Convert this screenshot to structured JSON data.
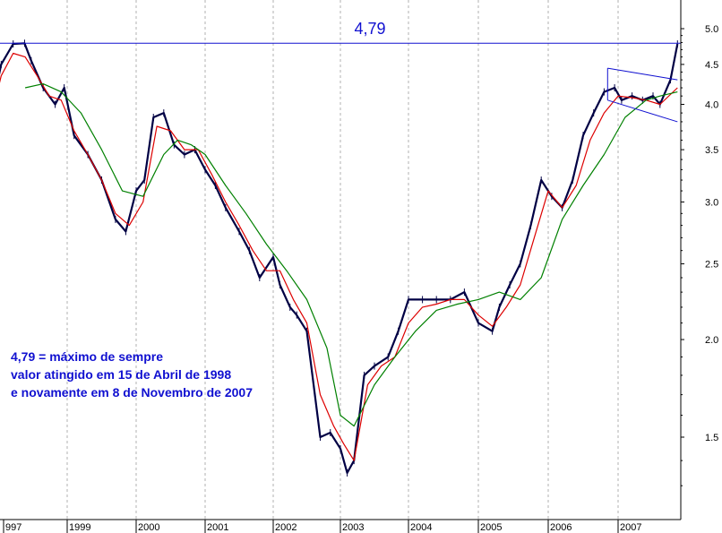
{
  "chart_data": {
    "type": "line",
    "title": "",
    "xlabel": "",
    "ylabel": "",
    "y_scale": "log",
    "ylim": [
      1.2,
      5.2
    ],
    "x_tick_labels": [
      "997",
      "1999",
      "2000",
      "2001",
      "2002",
      "2003",
      "2004",
      "2005",
      "2006",
      "2007"
    ],
    "y_ticks": [
      5.0,
      4.5,
      4.0,
      3.5,
      3.0,
      2.5,
      2.0,
      1.5
    ],
    "y_tick_labels": [
      "5.0",
      "4.5",
      "4.0",
      "3.5",
      "3.0",
      "2.5",
      "2.0",
      "1.5"
    ],
    "grid": "vertical dotted at year boundaries",
    "series": [
      {
        "style": "price (black/navy bars)",
        "color": "#000044",
        "x": [
          1997.5,
          1997.7,
          1997.9,
          1998.1,
          1998.29,
          1998.4,
          1998.6,
          1998.8,
          1998.95,
          1999.1,
          1999.3,
          1999.5,
          1999.7,
          1999.85,
          2000.0,
          2000.12,
          2000.25,
          2000.4,
          2000.55,
          2000.7,
          2000.85,
          2001.0,
          2001.15,
          2001.3,
          2001.5,
          2001.65,
          2001.8,
          2002.0,
          2002.1,
          2002.25,
          2002.35,
          2002.5,
          2002.7,
          2002.85,
          2003.0,
          2003.1,
          2003.2,
          2003.35,
          2003.5,
          2003.7,
          2003.85,
          2004.0,
          2004.2,
          2004.4,
          2004.6,
          2004.8,
          2005.0,
          2005.2,
          2005.3,
          2005.45,
          2005.6,
          2005.75,
          2005.9,
          2006.05,
          2006.2,
          2006.35,
          2006.5,
          2006.65,
          2006.8,
          2006.95,
          2007.05,
          2007.2,
          2007.35,
          2007.5,
          2007.6,
          2007.75,
          2007.85
        ],
        "values": [
          3.35,
          3.8,
          4.5,
          4.78,
          4.79,
          4.55,
          4.2,
          4.0,
          4.2,
          3.65,
          3.45,
          3.2,
          2.85,
          2.75,
          3.1,
          3.2,
          3.85,
          3.9,
          3.55,
          3.45,
          3.5,
          3.3,
          3.15,
          2.95,
          2.75,
          2.6,
          2.4,
          2.55,
          2.35,
          2.2,
          2.15,
          2.05,
          1.5,
          1.52,
          1.45,
          1.35,
          1.4,
          1.8,
          1.85,
          1.9,
          2.05,
          2.25,
          2.25,
          2.25,
          2.25,
          2.3,
          2.1,
          2.05,
          2.2,
          2.35,
          2.5,
          2.8,
          3.2,
          3.05,
          2.95,
          3.2,
          3.65,
          3.9,
          4.15,
          4.2,
          4.05,
          4.1,
          4.05,
          4.1,
          4.0,
          4.3,
          4.78
        ]
      },
      {
        "style": "short moving average",
        "color": "#dd0000",
        "x": [
          1997.5,
          1997.7,
          1997.9,
          1998.1,
          1998.3,
          1998.5,
          1998.7,
          1998.9,
          1999.1,
          1999.3,
          1999.5,
          1999.7,
          1999.9,
          2000.1,
          2000.3,
          2000.5,
          2000.7,
          2000.9,
          2001.1,
          2001.3,
          2001.5,
          2001.7,
          2001.9,
          2002.1,
          2002.3,
          2002.5,
          2002.7,
          2002.9,
          2003.05,
          2003.2,
          2003.4,
          2003.6,
          2003.8,
          2004.0,
          2004.2,
          2004.4,
          2004.6,
          2004.8,
          2005.0,
          2005.2,
          2005.4,
          2005.6,
          2005.8,
          2006.0,
          2006.2,
          2006.4,
          2006.6,
          2006.8,
          2007.0,
          2007.2,
          2007.4,
          2007.6,
          2007.85
        ],
        "values": [
          3.4,
          3.75,
          4.35,
          4.65,
          4.6,
          4.35,
          4.1,
          4.05,
          3.7,
          3.45,
          3.2,
          2.9,
          2.8,
          3.0,
          3.75,
          3.7,
          3.5,
          3.5,
          3.25,
          3.0,
          2.8,
          2.6,
          2.45,
          2.45,
          2.25,
          2.1,
          1.7,
          1.55,
          1.47,
          1.4,
          1.75,
          1.85,
          1.9,
          2.1,
          2.2,
          2.22,
          2.25,
          2.25,
          2.15,
          2.08,
          2.2,
          2.35,
          2.7,
          3.1,
          2.95,
          3.15,
          3.6,
          3.9,
          4.1,
          4.08,
          4.05,
          4.0,
          4.2
        ]
      },
      {
        "style": "long moving average",
        "color": "#008000",
        "x": [
          1998.3,
          1998.6,
          1998.9,
          1999.2,
          1999.5,
          1999.8,
          2000.1,
          2000.4,
          2000.6,
          2000.8,
          2001.0,
          2001.3,
          2001.6,
          2001.9,
          2002.2,
          2002.5,
          2002.8,
          2003.0,
          2003.2,
          2003.5,
          2003.8,
          2004.1,
          2004.4,
          2004.7,
          2005.0,
          2005.3,
          2005.6,
          2005.9,
          2006.2,
          2006.5,
          2006.8,
          2007.1,
          2007.4,
          2007.6,
          2007.85
        ],
        "values": [
          4.2,
          4.25,
          4.15,
          3.9,
          3.5,
          3.1,
          3.05,
          3.45,
          3.6,
          3.55,
          3.45,
          3.15,
          2.9,
          2.65,
          2.45,
          2.25,
          1.95,
          1.6,
          1.55,
          1.75,
          1.9,
          2.05,
          2.18,
          2.22,
          2.25,
          2.3,
          2.25,
          2.4,
          2.85,
          3.15,
          3.45,
          3.85,
          4.05,
          4.1,
          4.15
        ]
      }
    ],
    "reference_line": {
      "value": 4.79,
      "label": "4,79",
      "color": "#1010d0"
    },
    "annotations": [
      "4,79 = máximo de sempre",
      "valor atingido em 15 de Abril de 1998",
      "e novamente em 8 de Novembro de 2007"
    ],
    "channel": {
      "color": "#1010d0",
      "upper": [
        [
          2006.85,
          4.45
        ],
        [
          2007.85,
          4.3
        ]
      ],
      "lower": [
        [
          2006.85,
          4.05
        ],
        [
          2007.85,
          3.8
        ]
      ]
    }
  }
}
